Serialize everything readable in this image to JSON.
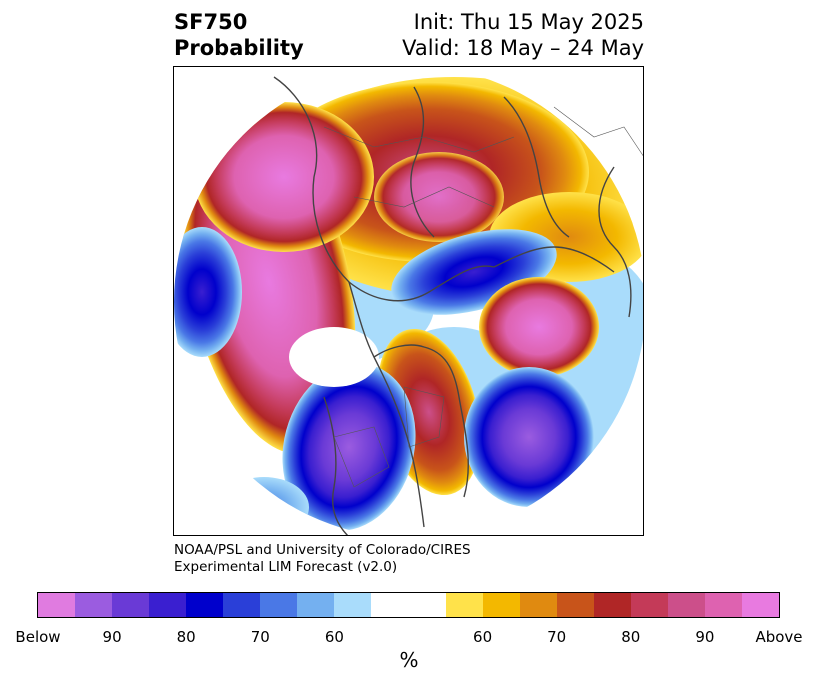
{
  "title": {
    "left_line1": "SF750",
    "left_line2": "Probability",
    "right_line1": "Init: Thu 15 May 2025",
    "right_line2": "Valid: 18 May – 24 May"
  },
  "credits": {
    "line1": "NOAA/PSL and University of Colorado/CIRES",
    "line2": "Experimental LIM Forecast (v2.0)"
  },
  "colorbar": {
    "colors": [
      "#e07be0",
      "#9b5ce0",
      "#6a3ad6",
      "#3a1fd0",
      "#0000cc",
      "#2a3fd8",
      "#4a78e6",
      "#74b0f0",
      "#a9dcfb",
      "#ffffff",
      "#ffffff",
      "#ffe24a",
      "#f3b800",
      "#e08a10",
      "#c8541a",
      "#b02626",
      "#c43a58",
      "#cc4f8a",
      "#de62b0",
      "#e87ae0"
    ],
    "labels": [
      "Below",
      "90",
      "80",
      "70",
      "60",
      "60",
      "70",
      "80",
      "90",
      "Above"
    ],
    "unit": "%"
  }
}
